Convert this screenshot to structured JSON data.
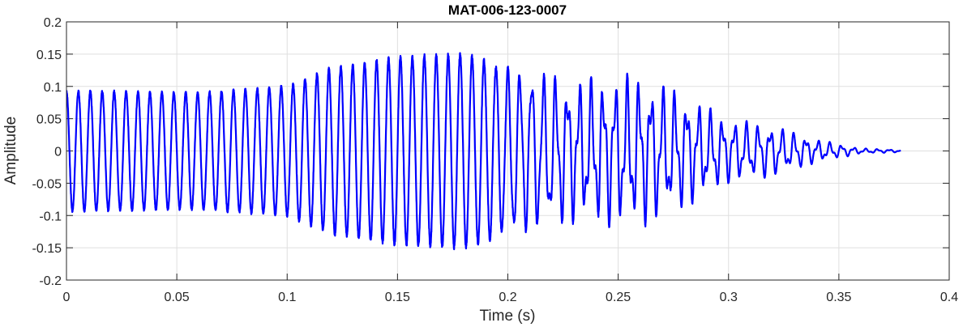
{
  "chart_data": {
    "type": "line",
    "title": "MAT-006-123-0007",
    "xlabel": "Time (s)",
    "ylabel": "Amplitude",
    "xlim": [
      0,
      0.4
    ],
    "ylim": [
      -0.2,
      0.2
    ],
    "grid": true,
    "x_ticks": [
      0,
      0.05,
      0.1,
      0.15,
      0.2,
      0.25,
      0.3,
      0.35,
      0.4
    ],
    "x_tick_labels": [
      "0",
      "0.05",
      "0.1",
      "0.15",
      "0.2",
      "0.25",
      "0.3",
      "0.35",
      "0.4"
    ],
    "y_ticks": [
      -0.2,
      -0.15,
      -0.1,
      -0.05,
      0,
      0.05,
      0.1,
      0.15,
      0.2
    ],
    "y_tick_labels": [
      "-0.2",
      "-0.15",
      "-0.1",
      "-0.05",
      "0",
      "0.05",
      "0.1",
      "0.15",
      "0.2"
    ],
    "series": [
      {
        "color": "#0000ff",
        "signal_end_time": 0.378,
        "dominant_frequency_hz": 185,
        "envelope": [
          {
            "t": 0.0,
            "amp": 0.093
          },
          {
            "t": 0.06,
            "amp": 0.09
          },
          {
            "t": 0.1,
            "amp": 0.1
          },
          {
            "t": 0.12,
            "amp": 0.128
          },
          {
            "t": 0.15,
            "amp": 0.145
          },
          {
            "t": 0.18,
            "amp": 0.15
          },
          {
            "t": 0.2,
            "amp": 0.13
          },
          {
            "t": 0.23,
            "amp": 0.115
          },
          {
            "t": 0.26,
            "amp": 0.12
          },
          {
            "t": 0.28,
            "amp": 0.09
          },
          {
            "t": 0.3,
            "amp": 0.05
          },
          {
            "t": 0.32,
            "amp": 0.04
          },
          {
            "t": 0.34,
            "amp": 0.018
          },
          {
            "t": 0.36,
            "amp": 0.004
          },
          {
            "t": 0.378,
            "amp": 0.002
          }
        ]
      }
    ]
  }
}
